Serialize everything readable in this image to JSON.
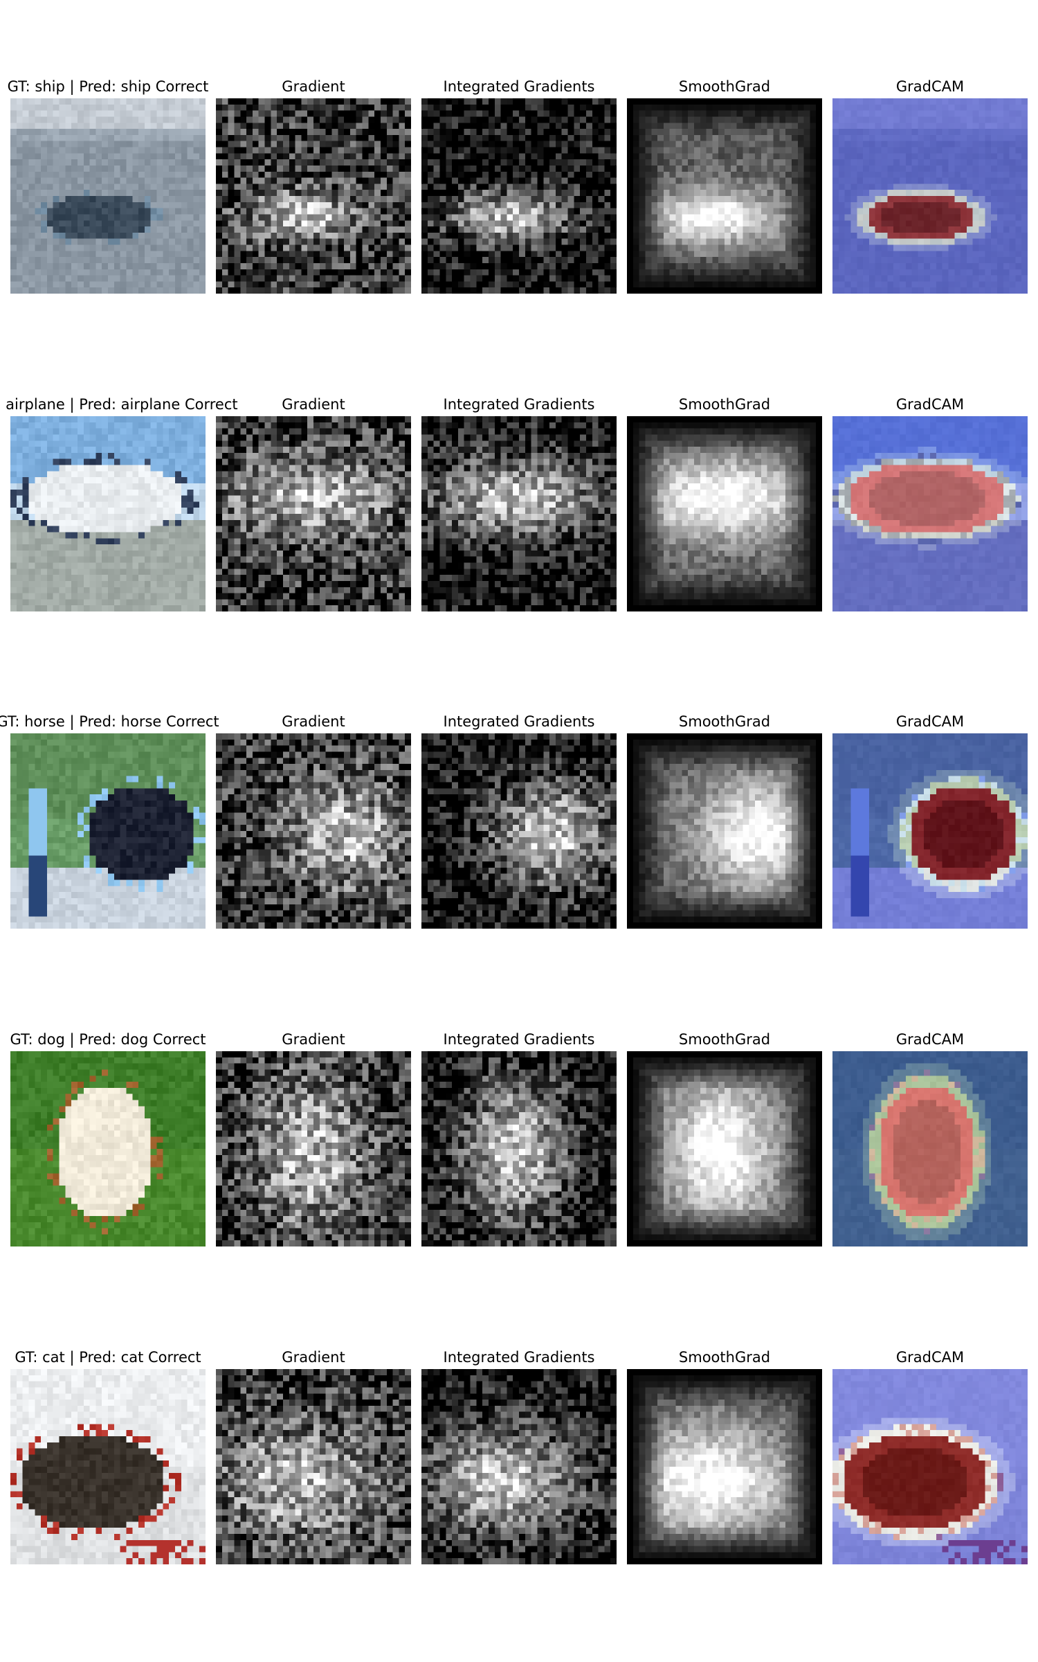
{
  "columns": [
    "Gradient",
    "Integrated Gradients",
    "SmoothGrad",
    "GradCAM"
  ],
  "rows": [
    {
      "title": "GT: ship | Pred: ship Correct",
      "scene": "ship",
      "palette": {
        "sky": "#c5ccd4",
        "bg": "#9aa6b2",
        "ground": "#8b97a3",
        "subject": "#3a4a5a",
        "accent": "#6f8aa0"
      }
    },
    {
      "title": "GT: airplane | Pred: airplane Correct",
      "scene": "airplane",
      "palette": {
        "sky": "#7fb0df",
        "bg": "#bfd6ea",
        "ground": "#a2aba6",
        "subject": "#e8ecef",
        "accent": "#2f3e5a"
      }
    },
    {
      "title": "GT: horse | Pred: horse Correct",
      "scene": "horse",
      "palette": {
        "sky": "#5f8f5a",
        "bg": "#6a9e68",
        "ground": "#c9d3de",
        "subject": "#1d2233",
        "accent": "#8fc6ef"
      }
    },
    {
      "title": "GT: dog | Pred: dog Correct",
      "scene": "dog",
      "palette": {
        "sky": "#3f7f2a",
        "bg": "#4d8f33",
        "ground": "#4a8a2e",
        "subject": "#f1ead9",
        "accent": "#a0622d"
      }
    },
    {
      "title": "GT: cat | Pred: cat Correct",
      "scene": "cat",
      "palette": {
        "sky": "#eceef0",
        "bg": "#e3e5e7",
        "ground": "#dfe1e3",
        "subject": "#3a332c",
        "accent": "#b5332a"
      }
    }
  ]
}
